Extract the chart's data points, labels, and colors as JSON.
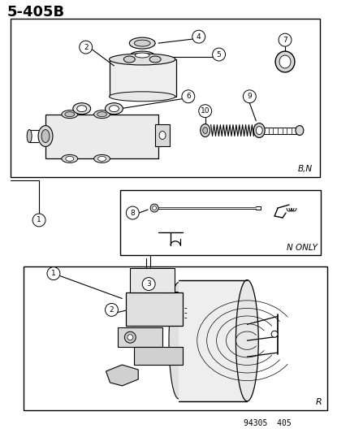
{
  "title": "5-405B",
  "background_color": "#ffffff",
  "border_color": "#000000",
  "text_color": "#000000",
  "footer_text": "94305  405",
  "box1_label": "B,N",
  "box2_label": "N ONLY",
  "box3_label": "R",
  "fig_width": 4.15,
  "fig_height": 5.33,
  "dpi": 100
}
